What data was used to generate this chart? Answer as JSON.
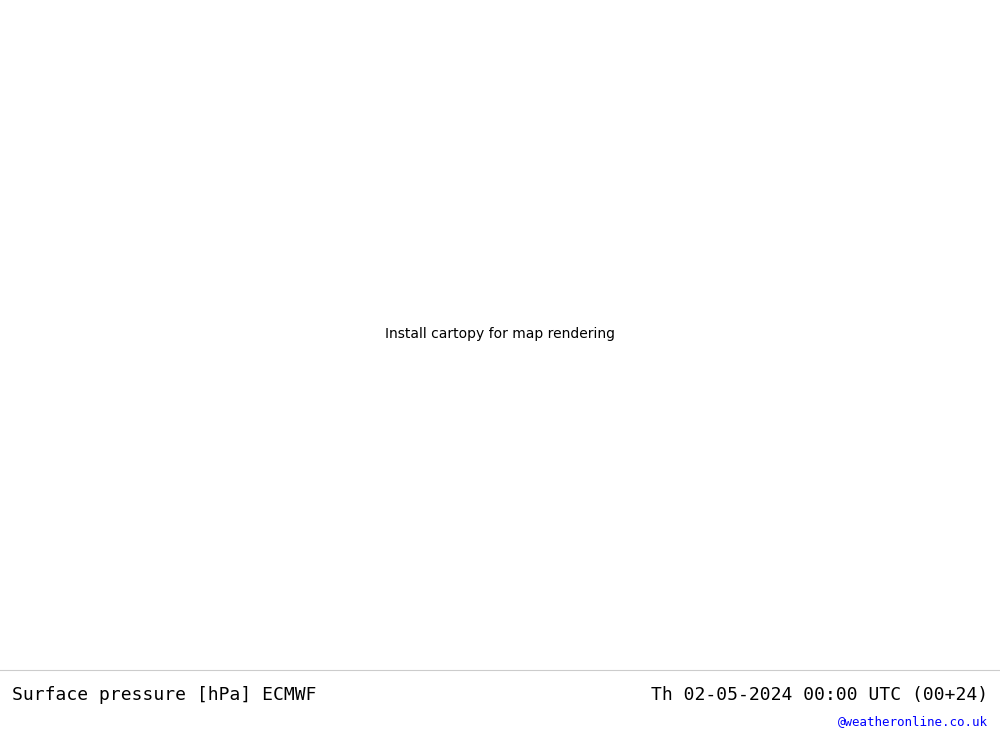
{
  "title_left": "Surface pressure [hPa] ECMWF",
  "title_right": "Th 02-05-2024 00:00 UTC (00+24)",
  "watermark": "@weatheronline.co.uk",
  "bg_land_color": "#b4e89c",
  "sea_color": "#d8d8d8",
  "border_color": "#888888",
  "fig_width": 10.0,
  "fig_height": 7.33,
  "title_fontsize": 13,
  "watermark_fontsize": 9,
  "label_fontsize": 8,
  "blue_color": "#0000cc",
  "black_color": "#000000",
  "red_color": "#cc0000",
  "contour_lw_blue": 1.2,
  "contour_lw_black": 1.5,
  "contour_lw_red": 1.5,
  "lon_min": 20,
  "lon_max": 130,
  "lat_min": -5,
  "lat_max": 60
}
